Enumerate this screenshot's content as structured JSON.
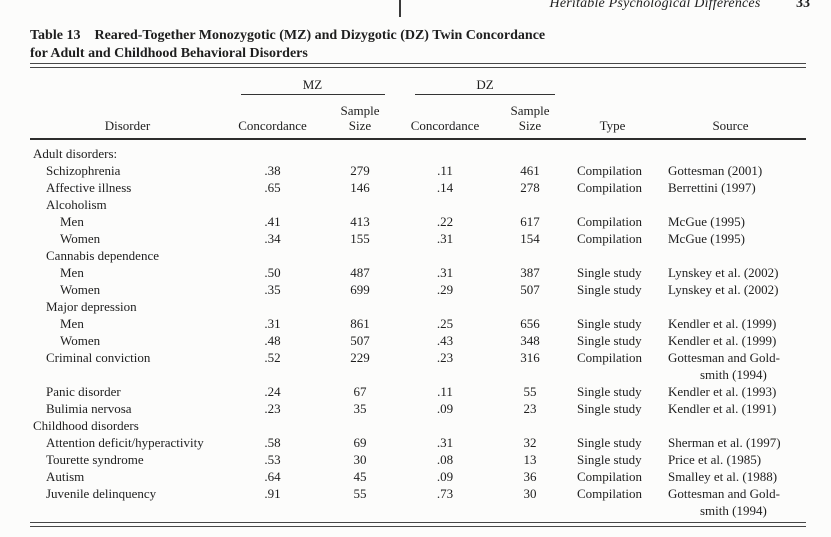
{
  "page": {
    "running_head": "Heritable Psychological Differences",
    "page_number": "33"
  },
  "table": {
    "label": "Table 13",
    "title_line1": "Reared-Together Monozygotic (MZ) and Dizygotic (DZ) Twin Concordance",
    "title_line2": "for Adult and Childhood Behavioral Disorders",
    "header": {
      "group_mz": "MZ",
      "group_dz": "DZ",
      "disorder": "Disorder",
      "concordance": "Concordance",
      "sample": "Sample",
      "size": "Size",
      "type": "Type",
      "source": "Source"
    },
    "rows": [
      {
        "disorder": "Adult disorders:",
        "indent": 0,
        "mz_concordance": "",
        "mz_sample_size": "",
        "dz_concordance": "",
        "dz_sample_size": "",
        "type": "",
        "source_lines": []
      },
      {
        "disorder": "Schizophrenia",
        "indent": 1,
        "mz_concordance": ".38",
        "mz_sample_size": "279",
        "dz_concordance": ".11",
        "dz_sample_size": "461",
        "type": "Compilation",
        "source_lines": [
          "Gottesman (2001)"
        ]
      },
      {
        "disorder": "Affective illness",
        "indent": 1,
        "mz_concordance": ".65",
        "mz_sample_size": "146",
        "dz_concordance": ".14",
        "dz_sample_size": "278",
        "type": "Compilation",
        "source_lines": [
          "Berrettini (1997)"
        ]
      },
      {
        "disorder": "Alcoholism",
        "indent": 1,
        "mz_concordance": "",
        "mz_sample_size": "",
        "dz_concordance": "",
        "dz_sample_size": "",
        "type": "",
        "source_lines": []
      },
      {
        "disorder": "Men",
        "indent": 2,
        "mz_concordance": ".41",
        "mz_sample_size": "413",
        "dz_concordance": ".22",
        "dz_sample_size": "617",
        "type": "Compilation",
        "source_lines": [
          "McGue (1995)"
        ]
      },
      {
        "disorder": "Women",
        "indent": 2,
        "mz_concordance": ".34",
        "mz_sample_size": "155",
        "dz_concordance": ".31",
        "dz_sample_size": "154",
        "type": "Compilation",
        "source_lines": [
          "McGue (1995)"
        ]
      },
      {
        "disorder": "Cannabis dependence",
        "indent": 1,
        "mz_concordance": "",
        "mz_sample_size": "",
        "dz_concordance": "",
        "dz_sample_size": "",
        "type": "",
        "source_lines": []
      },
      {
        "disorder": "Men",
        "indent": 2,
        "mz_concordance": ".50",
        "mz_sample_size": "487",
        "dz_concordance": ".31",
        "dz_sample_size": "387",
        "type": "Single study",
        "source_lines": [
          "Lynskey et al. (2002)"
        ]
      },
      {
        "disorder": "Women",
        "indent": 2,
        "mz_concordance": ".35",
        "mz_sample_size": "699",
        "dz_concordance": ".29",
        "dz_sample_size": "507",
        "type": "Single study",
        "source_lines": [
          "Lynskey et al. (2002)"
        ]
      },
      {
        "disorder": "Major depression",
        "indent": 1,
        "mz_concordance": "",
        "mz_sample_size": "",
        "dz_concordance": "",
        "dz_sample_size": "",
        "type": "",
        "source_lines": []
      },
      {
        "disorder": "Men",
        "indent": 2,
        "mz_concordance": ".31",
        "mz_sample_size": "861",
        "dz_concordance": ".25",
        "dz_sample_size": "656",
        "type": "Single study",
        "source_lines": [
          "Kendler et al. (1999)"
        ]
      },
      {
        "disorder": "Women",
        "indent": 2,
        "mz_concordance": ".48",
        "mz_sample_size": "507",
        "dz_concordance": ".43",
        "dz_sample_size": "348",
        "type": "Single study",
        "source_lines": [
          "Kendler et al. (1999)"
        ]
      },
      {
        "disorder": "Criminal conviction",
        "indent": 1,
        "mz_concordance": ".52",
        "mz_sample_size": "229",
        "dz_concordance": ".23",
        "dz_sample_size": "316",
        "type": "Compilation",
        "source_lines": [
          "Gottesman and Gold-",
          "smith (1994)"
        ]
      },
      {
        "disorder": "Panic disorder",
        "indent": 1,
        "mz_concordance": ".24",
        "mz_sample_size": "67",
        "dz_concordance": ".11",
        "dz_sample_size": "55",
        "type": "Single study",
        "source_lines": [
          "Kendler et al. (1993)"
        ]
      },
      {
        "disorder": "Bulimia nervosa",
        "indent": 1,
        "mz_concordance": ".23",
        "mz_sample_size": "35",
        "dz_concordance": ".09",
        "dz_sample_size": "23",
        "type": "Single study",
        "source_lines": [
          "Kendler et al. (1991)"
        ]
      },
      {
        "disorder": "Childhood disorders",
        "indent": 0,
        "mz_concordance": "",
        "mz_sample_size": "",
        "dz_concordance": "",
        "dz_sample_size": "",
        "type": "",
        "source_lines": []
      },
      {
        "disorder": "Attention deficit/hyperactivity",
        "indent": 1,
        "mz_concordance": ".58",
        "mz_sample_size": "69",
        "dz_concordance": ".31",
        "dz_sample_size": "32",
        "type": "Single study",
        "source_lines": [
          "Sherman et al. (1997)"
        ]
      },
      {
        "disorder": "Tourette syndrome",
        "indent": 1,
        "mz_concordance": ".53",
        "mz_sample_size": "30",
        "dz_concordance": ".08",
        "dz_sample_size": "13",
        "type": "Single study",
        "source_lines": [
          "Price et al. (1985)"
        ]
      },
      {
        "disorder": "Autism",
        "indent": 1,
        "mz_concordance": ".64",
        "mz_sample_size": "45",
        "dz_concordance": ".09",
        "dz_sample_size": "36",
        "type": "Compilation",
        "source_lines": [
          "Smalley et al. (1988)"
        ]
      },
      {
        "disorder": "Juvenile delinquency",
        "indent": 1,
        "mz_concordance": ".91",
        "mz_sample_size": "55",
        "dz_concordance": ".73",
        "dz_sample_size": "30",
        "type": "Compilation",
        "source_lines": [
          "Gottesman and Gold-",
          "smith (1994)"
        ]
      }
    ]
  }
}
